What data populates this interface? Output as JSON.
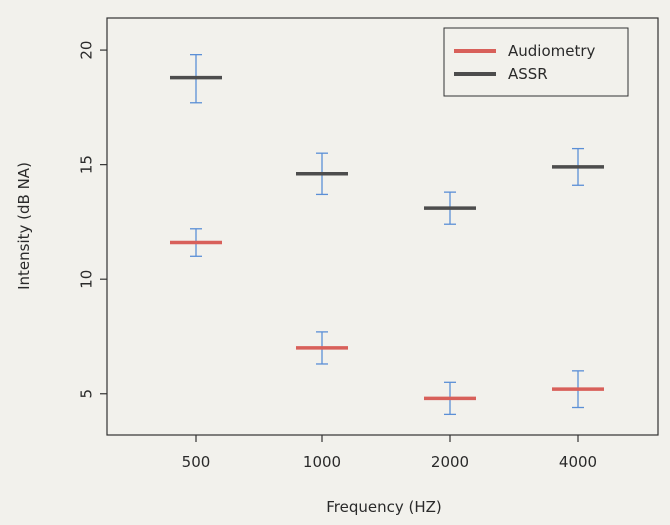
{
  "chart_data": {
    "type": "scatter",
    "title": "",
    "xlabel": "Frequency (HZ)",
    "ylabel": "Intensity (dB NA)",
    "categories": [
      "500",
      "1000",
      "2000",
      "4000"
    ],
    "ylim": [
      3.2,
      21.4
    ],
    "yticks": [
      "5",
      "10",
      "15",
      "20"
    ],
    "grid": false,
    "legend_position": "top-right",
    "series": [
      {
        "name": "Audiometry",
        "color": "#d8605a",
        "values": [
          11.6,
          7.0,
          4.8,
          5.2
        ],
        "err_low": [
          11.0,
          6.3,
          4.1,
          4.4
        ],
        "err_high": [
          12.2,
          7.7,
          5.5,
          6.0
        ]
      },
      {
        "name": "ASSR",
        "color": "#4d4d4d",
        "values": [
          18.8,
          14.6,
          13.1,
          14.9
        ],
        "err_low": [
          17.7,
          13.7,
          12.4,
          14.1
        ],
        "err_high": [
          19.8,
          15.5,
          13.8,
          15.7
        ]
      }
    ],
    "error_bar_color": "#5b8fd6"
  }
}
